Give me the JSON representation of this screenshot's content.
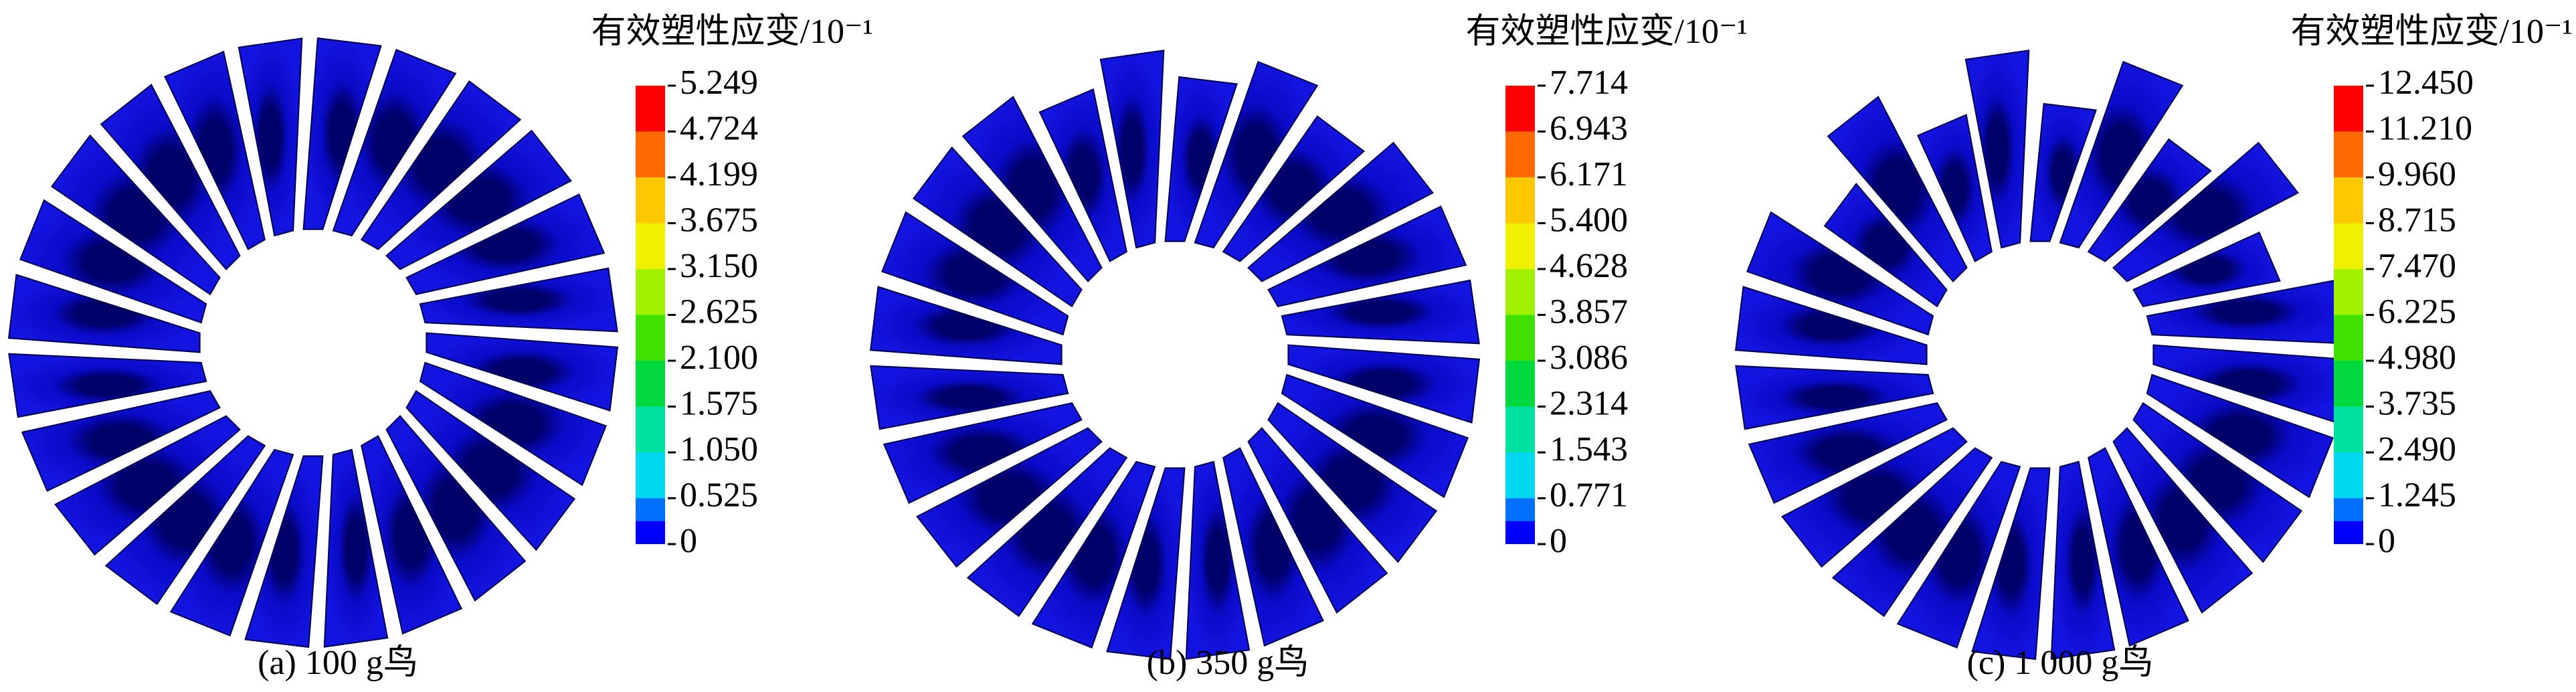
{
  "panels": [
    {
      "legend_title": "有效塑性应变/10⁻¹",
      "legend_labels": [
        "5.249",
        "4.724",
        "4.199",
        "3.675",
        "3.150",
        "2.625",
        "2.100",
        "1.575",
        "1.050",
        "0.525",
        "0"
      ],
      "caption": "(a) 100 g鸟"
    },
    {
      "legend_title": "有效塑性应变/10⁻¹",
      "legend_labels": [
        "7.714",
        "6.943",
        "6.171",
        "5.400",
        "4.628",
        "3.857",
        "3.086",
        "2.314",
        "1.543",
        "0.771",
        "0"
      ],
      "caption": "(b) 350 g鸟"
    },
    {
      "legend_title": "有效塑性应变/10⁻¹",
      "legend_labels": [
        "12.450",
        "11.210",
        "9.960",
        "8.715",
        "7.470",
        "6.225",
        "4.980",
        "3.735",
        "2.490",
        "1.245",
        "0"
      ],
      "caption": "(c) 1 000 g鸟"
    }
  ]
}
